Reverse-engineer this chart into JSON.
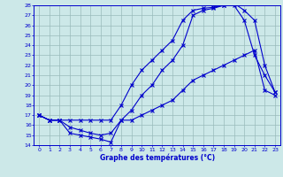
{
  "xlabel": "Graphe des températures (°C)",
  "bg_color": "#cce8e8",
  "line_color": "#0000cc",
  "grid_color": "#99bbbb",
  "xlim": [
    -0.5,
    23.5
  ],
  "ylim": [
    14,
    28
  ],
  "yticks": [
    14,
    15,
    16,
    17,
    18,
    19,
    20,
    21,
    22,
    23,
    24,
    25,
    26,
    27,
    28
  ],
  "xticks": [
    0,
    1,
    2,
    3,
    4,
    5,
    6,
    7,
    8,
    9,
    10,
    11,
    12,
    13,
    14,
    15,
    16,
    17,
    18,
    19,
    20,
    21,
    22,
    23
  ],
  "line_max": {
    "x": [
      0,
      1,
      2,
      3,
      4,
      5,
      6,
      7,
      8,
      9,
      10,
      11,
      12,
      13,
      14,
      15,
      16,
      17,
      18,
      19,
      20,
      21,
      22,
      23
    ],
    "y": [
      17.0,
      16.5,
      16.5,
      16.5,
      16.5,
      16.5,
      16.5,
      16.5,
      18.0,
      20.0,
      21.5,
      22.5,
      23.5,
      24.5,
      26.5,
      27.5,
      27.7,
      27.8,
      28.0,
      28.2,
      27.5,
      26.5,
      22.0,
      19.3
    ]
  },
  "line_min": {
    "x": [
      0,
      1,
      2,
      3,
      4,
      5,
      6,
      7,
      8,
      9,
      10,
      11,
      12,
      13,
      14,
      15,
      16,
      17,
      18,
      19,
      20,
      21,
      22,
      23
    ],
    "y": [
      17.0,
      16.5,
      16.5,
      15.2,
      15.0,
      14.8,
      14.6,
      14.3,
      16.5,
      16.5,
      17.0,
      17.5,
      18.0,
      18.5,
      19.5,
      20.5,
      21.0,
      21.5,
      22.0,
      22.5,
      23.0,
      23.5,
      19.5,
      19.0
    ]
  },
  "line_mean": {
    "x": [
      0,
      1,
      2,
      3,
      4,
      5,
      6,
      7,
      8,
      9,
      10,
      11,
      12,
      13,
      14,
      15,
      16,
      17,
      18,
      19,
      20,
      21,
      22,
      23
    ],
    "y": [
      17.0,
      16.5,
      16.5,
      15.8,
      15.5,
      15.2,
      15.0,
      15.2,
      16.5,
      17.5,
      19.0,
      20.0,
      21.5,
      22.5,
      24.0,
      27.0,
      27.5,
      27.7,
      28.0,
      28.0,
      26.5,
      23.0,
      21.0,
      19.3
    ]
  }
}
